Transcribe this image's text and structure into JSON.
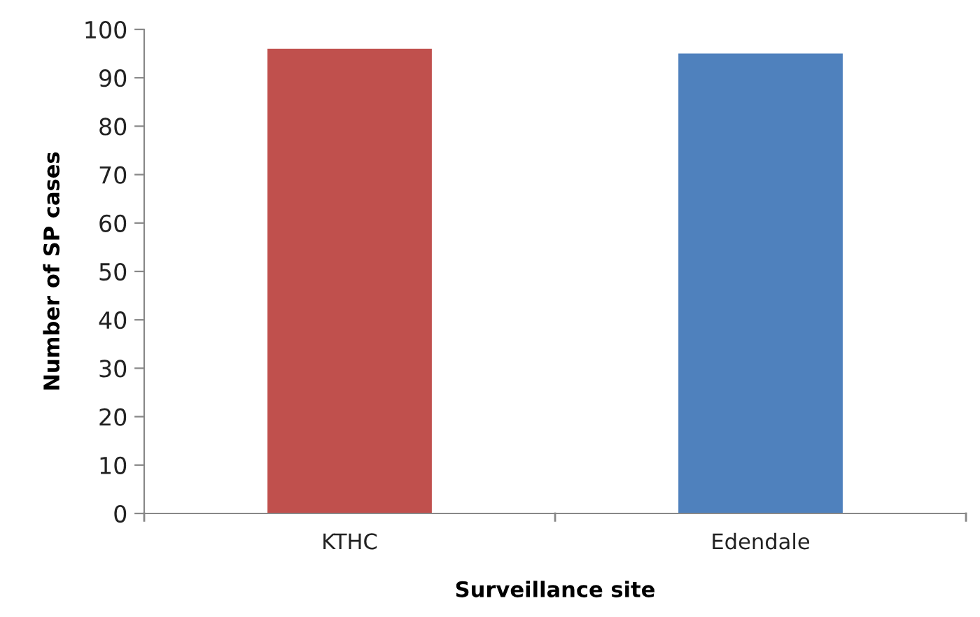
{
  "chart_data": {
    "type": "bar",
    "xlabel": "Surveillance site",
    "ylabel": "Number of SP cases",
    "categories": [
      "KTHC",
      "Edendale"
    ],
    "values": [
      96,
      95
    ],
    "colors": [
      "#c0504d",
      "#4f81bd"
    ],
    "ylim": [
      0,
      100
    ],
    "yticks": [
      0,
      10,
      20,
      30,
      40,
      50,
      60,
      70,
      80,
      90,
      100
    ],
    "grid": false
  }
}
